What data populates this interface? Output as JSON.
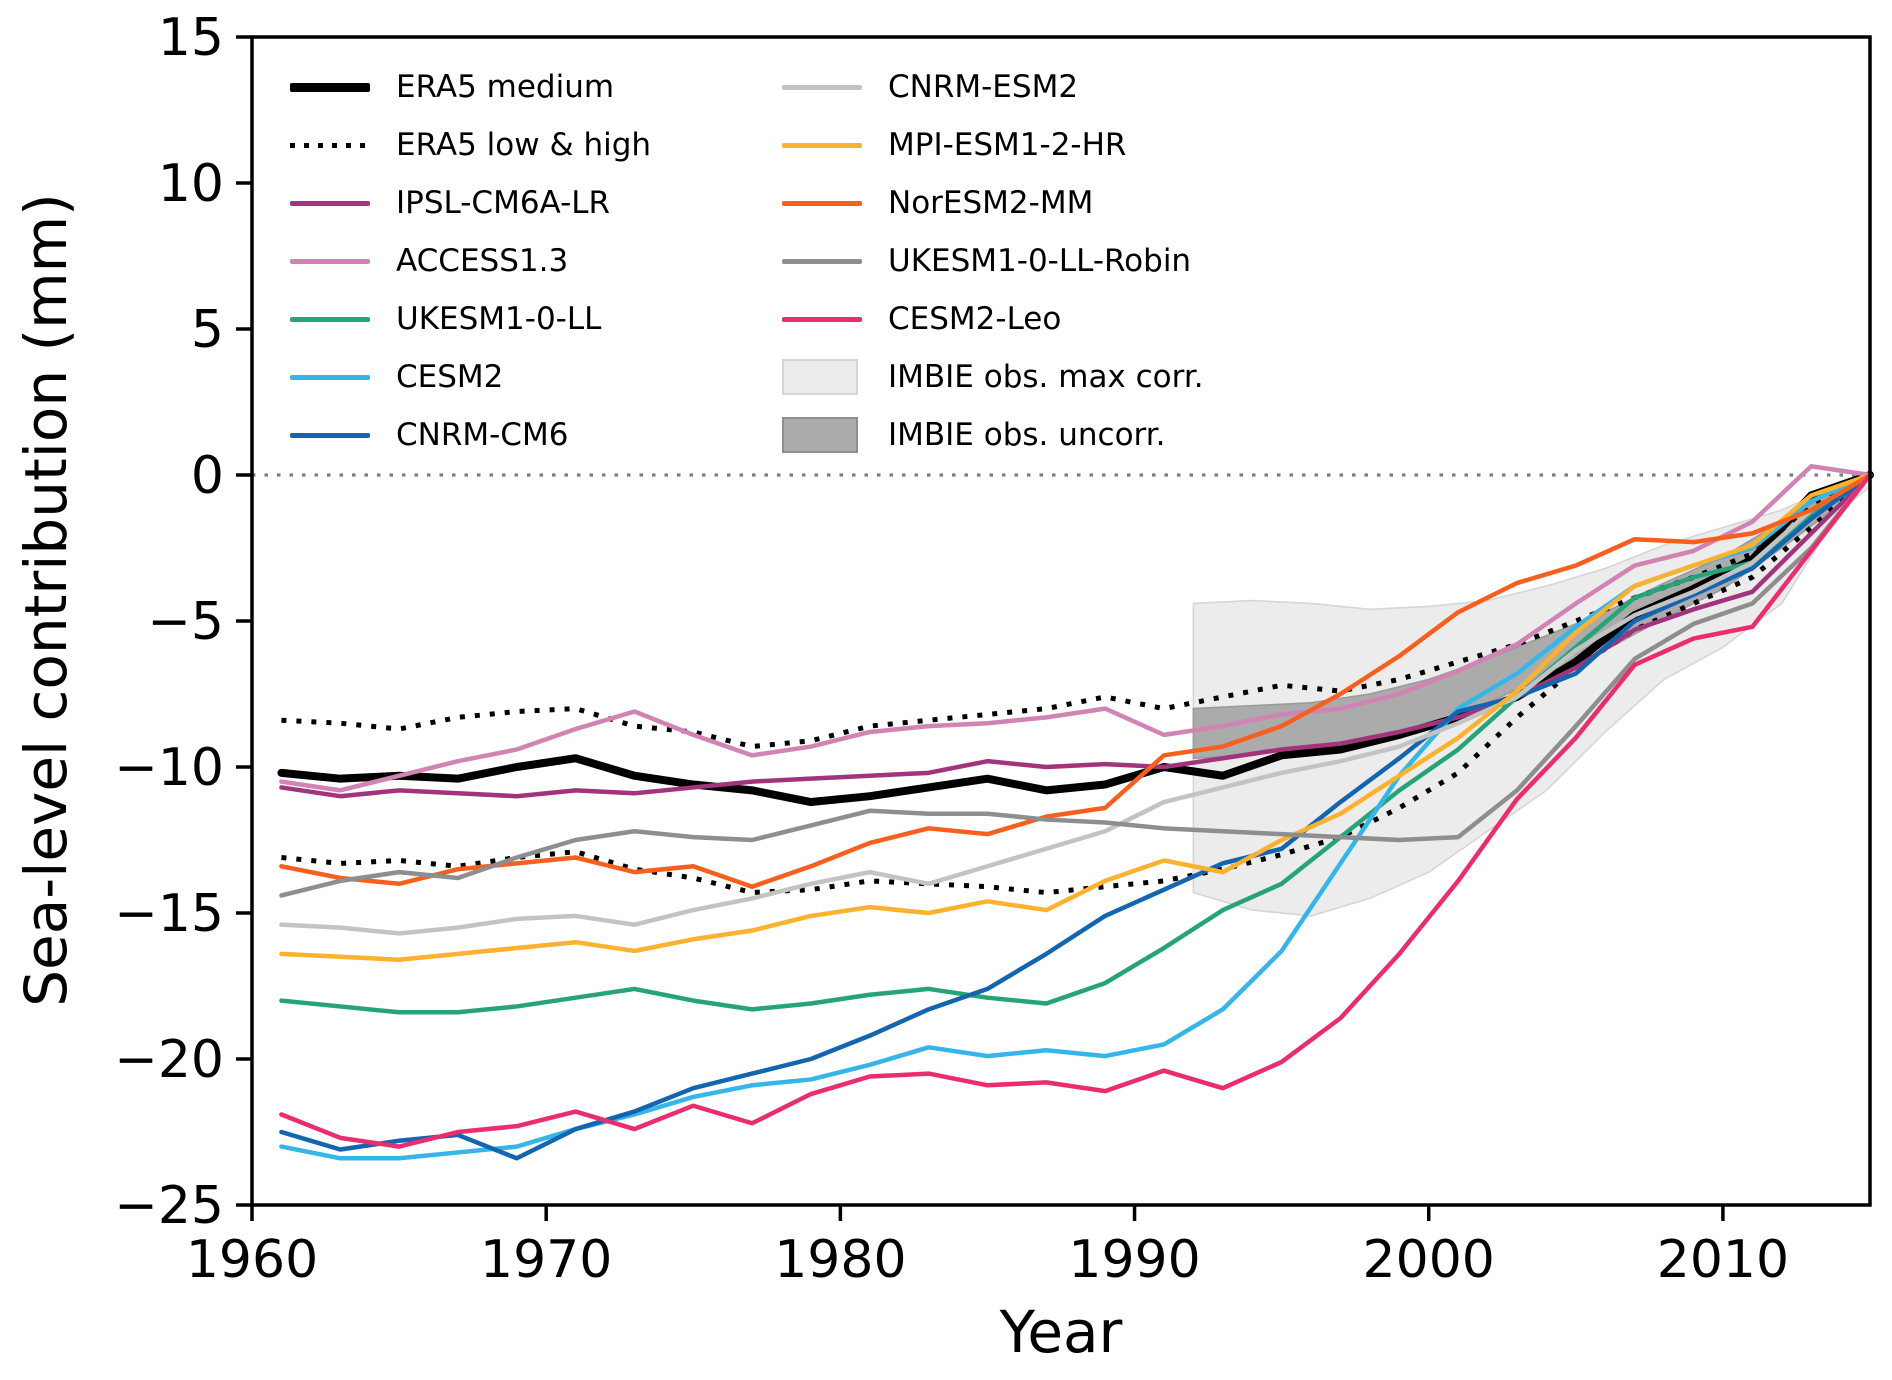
{
  "figure": {
    "background": "#ffffff"
  },
  "legend": {
    "columns": [
      {
        "items": [
          {
            "label": "ERA5 medium",
            "swatch": "line",
            "color": "#000000",
            "thickness": 9
          },
          {
            "label": "ERA5 low & high",
            "swatch": "dotted",
            "color": "#000000",
            "thickness": 5
          },
          {
            "label": "IPSL-CM6A-LR",
            "swatch": "line",
            "color": "#a1347c",
            "thickness": 5
          },
          {
            "label": "ACCESS1.3",
            "swatch": "line",
            "color": "#d183b4",
            "thickness": 5
          },
          {
            "label": "UKESM1-0-LL",
            "swatch": "line",
            "color": "#27a477",
            "thickness": 5
          },
          {
            "label": "CESM2",
            "swatch": "line",
            "color": "#35b5e8",
            "thickness": 5
          },
          {
            "label": "CNRM-CM6",
            "swatch": "line",
            "color": "#1465b0",
            "thickness": 5
          }
        ]
      },
      {
        "items": [
          {
            "label": "CNRM-ESM2",
            "swatch": "line",
            "color": "#c3c3c3",
            "thickness": 5
          },
          {
            "label": "MPI-ESM1-2-HR",
            "swatch": "line",
            "color": "#fcb22e",
            "thickness": 5
          },
          {
            "label": "NorESM2-MM",
            "swatch": "line",
            "color": "#f75f1f",
            "thickness": 5
          },
          {
            "label": "UKESM1-0-LL-Robin",
            "swatch": "line",
            "color": "#8e8e8e",
            "thickness": 5
          },
          {
            "label": "CESM2-Leo",
            "swatch": "line",
            "color": "#e92d6e",
            "thickness": 5
          },
          {
            "label": "IMBIE obs. max corr.",
            "swatch": "patch",
            "color": "#ececec",
            "edge": "#d6d6d6"
          },
          {
            "label": "IMBIE obs. uncorr.",
            "swatch": "patch",
            "color": "#ababab",
            "edge": "#8f8f8f"
          }
        ]
      }
    ]
  },
  "chart_data": {
    "type": "line",
    "title": "",
    "xlabel": "Year",
    "ylabel": "Sea-level contribution (mm)",
    "xlim": [
      1960,
      2015
    ],
    "ylim": [
      -25,
      15
    ],
    "grid": false,
    "legend_position": "upper left, two columns",
    "x_tick_values": [
      1960,
      1970,
      1980,
      1990,
      2000,
      2010
    ],
    "x_tick_labels": [
      "1960",
      "1970",
      "1980",
      "1990",
      "2000",
      "2010"
    ],
    "y_tick_values": [
      15,
      10,
      5,
      0,
      -5,
      -10,
      -15,
      -20,
      -25
    ],
    "y_tick_labels": [
      "15",
      "10",
      "5",
      "0",
      "−5",
      "−10",
      "−15",
      "−20",
      "−25"
    ],
    "zero_line": {
      "y": 0,
      "color": "#7f7f7f",
      "style": "dotted"
    },
    "years": [
      1961,
      1963,
      1965,
      1967,
      1969,
      1971,
      1973,
      1975,
      1977,
      1979,
      1981,
      1983,
      1985,
      1987,
      1989,
      1991,
      1993,
      1995,
      1997,
      1999,
      2001,
      2003,
      2005,
      2007,
      2009,
      2011,
      2013,
      2015
    ],
    "series": [
      {
        "name": "ERA5 medium",
        "color": "#000000",
        "width": 8,
        "style": "solid",
        "values": [
          -10.2,
          -10.4,
          -10.3,
          -10.4,
          -10.0,
          -9.7,
          -10.3,
          -10.6,
          -10.8,
          -11.2,
          -11.0,
          -10.7,
          -10.4,
          -10.8,
          -10.6,
          -10.0,
          -10.3,
          -9.6,
          -9.4,
          -8.9,
          -8.3,
          -7.6,
          -6.4,
          -4.8,
          -3.9,
          -2.9,
          -0.7,
          0
        ]
      },
      {
        "name": "ERA5 high",
        "color": "#000000",
        "width": 5,
        "style": "dotted",
        "values": [
          -8.4,
          -8.5,
          -8.7,
          -8.3,
          -8.1,
          -8.0,
          -8.6,
          -8.8,
          -9.3,
          -9.1,
          -8.6,
          -8.4,
          -8.2,
          -8.0,
          -7.6,
          -8.0,
          -7.6,
          -7.2,
          -7.4,
          -7.0,
          -6.4,
          -5.8,
          -5.0,
          -4.2,
          -3.5,
          -2.7,
          -1.1,
          0
        ]
      },
      {
        "name": "ERA5 low",
        "color": "#000000",
        "width": 5,
        "style": "dotted",
        "values": [
          -13.1,
          -13.3,
          -13.2,
          -13.4,
          -13.1,
          -12.9,
          -13.5,
          -13.8,
          -14.3,
          -14.2,
          -13.9,
          -14.0,
          -14.1,
          -14.3,
          -14.1,
          -13.9,
          -13.5,
          -13.0,
          -12.4,
          -11.4,
          -10.2,
          -8.3,
          -6.6,
          -5.3,
          -4.4,
          -3.5,
          -1.8,
          0
        ]
      },
      {
        "name": "IPSL-CM6A-LR",
        "color": "#a1347c",
        "width": 4.5,
        "style": "solid",
        "values": [
          -10.7,
          -11.0,
          -10.8,
          -10.9,
          -11.0,
          -10.8,
          -10.9,
          -10.7,
          -10.5,
          -10.4,
          -10.3,
          -10.2,
          -9.8,
          -10.0,
          -9.9,
          -10.0,
          -9.7,
          -9.4,
          -9.2,
          -8.8,
          -8.3,
          -7.6,
          -6.6,
          -5.3,
          -4.6,
          -4.0,
          -2.0,
          0
        ]
      },
      {
        "name": "ACCESS1.3",
        "color": "#d183b4",
        "width": 4.5,
        "style": "solid",
        "values": [
          -10.5,
          -10.8,
          -10.3,
          -9.8,
          -9.4,
          -8.7,
          -8.1,
          -8.9,
          -9.6,
          -9.3,
          -8.8,
          -8.6,
          -8.5,
          -8.3,
          -8.0,
          -8.9,
          -8.6,
          -8.2,
          -8.0,
          -7.5,
          -6.7,
          -5.8,
          -4.4,
          -3.1,
          -2.6,
          -1.6,
          0.3,
          0
        ]
      },
      {
        "name": "UKESM1-0-LL",
        "color": "#27a477",
        "width": 4.5,
        "style": "solid",
        "values": [
          -18.0,
          -18.2,
          -18.4,
          -18.4,
          -18.2,
          -17.9,
          -17.6,
          -18.0,
          -18.3,
          -18.1,
          -17.8,
          -17.6,
          -17.9,
          -18.1,
          -17.4,
          -16.2,
          -14.9,
          -14.0,
          -12.4,
          -10.8,
          -9.4,
          -7.6,
          -5.9,
          -4.2,
          -3.5,
          -3.0,
          -1.4,
          0
        ]
      },
      {
        "name": "CESM2",
        "color": "#35b5e8",
        "width": 4.5,
        "style": "solid",
        "values": [
          -23.0,
          -23.4,
          -23.4,
          -23.2,
          -23.0,
          -22.4,
          -21.9,
          -21.3,
          -20.9,
          -20.7,
          -20.2,
          -19.6,
          -19.9,
          -19.7,
          -19.9,
          -19.5,
          -18.3,
          -16.3,
          -13.3,
          -10.3,
          -8.0,
          -6.8,
          -5.2,
          -3.8,
          -3.1,
          -2.5,
          -0.9,
          0
        ]
      },
      {
        "name": "CNRM-CM6",
        "color": "#1465b0",
        "width": 4.5,
        "style": "solid",
        "values": [
          -22.5,
          -23.1,
          -22.8,
          -22.6,
          -23.4,
          -22.4,
          -21.8,
          -21.0,
          -20.5,
          -20.0,
          -19.2,
          -18.3,
          -17.6,
          -16.4,
          -15.1,
          -14.2,
          -13.3,
          -12.8,
          -11.2,
          -9.7,
          -8.1,
          -7.6,
          -6.8,
          -5.0,
          -4.1,
          -3.2,
          -1.5,
          0
        ]
      },
      {
        "name": "CNRM-ESM2",
        "color": "#c3c3c3",
        "width": 4.5,
        "style": "solid",
        "values": [
          -15.4,
          -15.5,
          -15.7,
          -15.5,
          -15.2,
          -15.1,
          -15.4,
          -14.9,
          -14.5,
          -14.0,
          -13.6,
          -14.0,
          -13.4,
          -12.8,
          -12.2,
          -11.2,
          -10.7,
          -10.2,
          -9.8,
          -9.3,
          -8.5,
          -7.6,
          -6.0,
          -4.8,
          -4.0,
          -3.0,
          -1.2,
          0
        ]
      },
      {
        "name": "MPI-ESM1-2-HR",
        "color": "#fcb22e",
        "width": 4.5,
        "style": "solid",
        "values": [
          -16.4,
          -16.5,
          -16.6,
          -16.4,
          -16.2,
          -16.0,
          -16.3,
          -15.9,
          -15.6,
          -15.1,
          -14.8,
          -15.0,
          -14.6,
          -14.9,
          -13.9,
          -13.2,
          -13.6,
          -12.5,
          -11.6,
          -10.3,
          -9.0,
          -7.4,
          -5.4,
          -3.8,
          -3.1,
          -2.4,
          -0.7,
          0
        ]
      },
      {
        "name": "NorESM2-MM",
        "color": "#f75f1f",
        "width": 4.5,
        "style": "solid",
        "values": [
          -13.4,
          -13.8,
          -14.0,
          -13.5,
          -13.3,
          -13.1,
          -13.6,
          -13.4,
          -14.1,
          -13.4,
          -12.6,
          -12.1,
          -12.3,
          -11.7,
          -11.4,
          -9.6,
          -9.3,
          -8.6,
          -7.5,
          -6.2,
          -4.7,
          -3.7,
          -3.1,
          -2.2,
          -2.3,
          -2.0,
          -1.2,
          0
        ]
      },
      {
        "name": "UKESM1-0-LL-Robin",
        "color": "#8e8e8e",
        "width": 4.5,
        "style": "solid",
        "values": [
          -14.4,
          -13.9,
          -13.6,
          -13.8,
          -13.1,
          -12.5,
          -12.2,
          -12.4,
          -12.5,
          -12.0,
          -11.5,
          -11.6,
          -11.6,
          -11.8,
          -11.9,
          -12.1,
          -12.2,
          -12.3,
          -12.4,
          -12.5,
          -12.4,
          -10.8,
          -8.6,
          -6.3,
          -5.1,
          -4.4,
          -2.5,
          0
        ]
      },
      {
        "name": "CESM2-Leo",
        "color": "#e92d6e",
        "width": 4.5,
        "style": "solid",
        "values": [
          -21.9,
          -22.7,
          -23.0,
          -22.5,
          -22.3,
          -21.8,
          -22.4,
          -21.6,
          -22.2,
          -21.2,
          -20.6,
          -20.5,
          -20.9,
          -20.8,
          -21.1,
          -20.4,
          -21.0,
          -20.1,
          -18.6,
          -16.4,
          -13.9,
          -11.1,
          -9.0,
          -6.5,
          -5.6,
          -5.2,
          -2.6,
          0
        ]
      }
    ],
    "bands": [
      {
        "name": "IMBIE obs. max corr.",
        "fill": "#ececec",
        "edge": "#d6d6d6",
        "years": [
          1992,
          1994,
          1996,
          1998,
          2000,
          2002,
          2004,
          2006,
          2008,
          2010,
          2012,
          2014,
          2015
        ],
        "top": [
          -4.4,
          -4.3,
          -4.4,
          -4.6,
          -4.5,
          -4.3,
          -3.8,
          -3.2,
          -2.4,
          -1.8,
          -1.2,
          -0.3,
          -0.1
        ],
        "bottom": [
          -14.3,
          -14.9,
          -15.1,
          -14.5,
          -13.6,
          -12.2,
          -10.8,
          -8.8,
          -7.0,
          -5.9,
          -4.4,
          -1.2,
          -0.4
        ]
      },
      {
        "name": "IMBIE obs. uncorr.",
        "fill": "#ababab",
        "edge": "#9a9a9a",
        "years": [
          1992,
          1994,
          1996,
          1998,
          2000,
          2002,
          2004,
          2006,
          2008,
          2010,
          2012,
          2014
        ],
        "top": [
          -8.0,
          -7.9,
          -7.8,
          -7.5,
          -7.0,
          -6.3,
          -5.5,
          -4.7,
          -3.7,
          -2.8,
          -1.6,
          -0.4
        ],
        "bottom": [
          -9.7,
          -9.6,
          -9.3,
          -9.0,
          -8.6,
          -7.8,
          -6.9,
          -6.0,
          -4.9,
          -3.9,
          -2.5,
          -1.0
        ]
      }
    ]
  }
}
